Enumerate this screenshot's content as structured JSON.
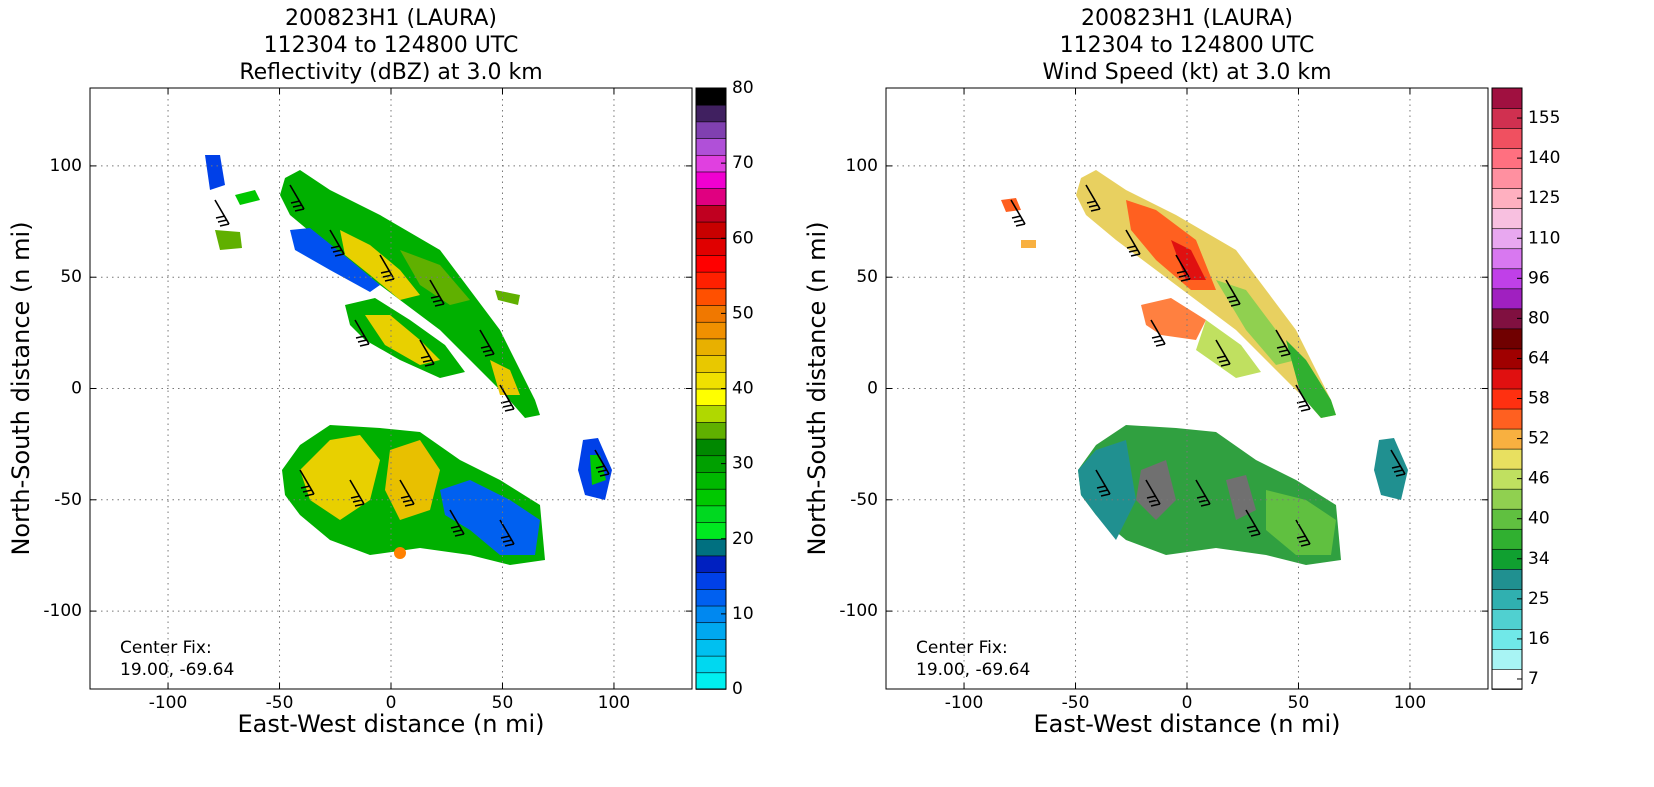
{
  "chart_data": [
    {
      "type": "heatmap",
      "title": [
        "200823H1 (LAURA)",
        "112304 to 124800 UTC",
        "Reflectivity (dBZ) at 3.0 km"
      ],
      "x_label": "East-West distance (n mi)",
      "y_label": "North-South distance (n mi)",
      "xlim": [
        -135,
        135
      ],
      "ylim": [
        -135,
        135
      ],
      "xticks": [
        -100,
        -50,
        0,
        50,
        100
      ],
      "yticks": [
        -100,
        -50,
        0,
        50,
        100
      ],
      "grid": true,
      "annotation": [
        "Center Fix:",
        "19.00, -69.64"
      ],
      "colorbar": {
        "scale": "linear",
        "lim": [
          0,
          80
        ],
        "ticks": [
          0,
          10,
          20,
          30,
          40,
          50,
          60,
          70,
          80
        ],
        "colors": [
          "#00f0f0",
          "#00d8f0",
          "#00c0f0",
          "#00a8f0",
          "#0088f0",
          "#0060f0",
          "#0040e8",
          "#0020c0",
          "#007080",
          "#00e820",
          "#00d820",
          "#00c800",
          "#00b800",
          "#00a000",
          "#008800",
          "#60b000",
          "#b0d800",
          "#ffff00",
          "#f0e000",
          "#e8c800",
          "#e8b000",
          "#f09000",
          "#f07800",
          "#ff5000",
          "#ff2000",
          "#ff0000",
          "#e00000",
          "#c80000",
          "#c00020",
          "#e00080",
          "#f000d0",
          "#e040e0",
          "#b050d8",
          "#8040b0",
          "#402060",
          "#000000"
        ]
      }
    },
    {
      "type": "heatmap",
      "title": [
        "200823H1 (LAURA)",
        "112304 to 124800 UTC",
        "Wind Speed (kt) at 3.0 km"
      ],
      "x_label": "East-West distance (n mi)",
      "y_label": "North-South distance (n mi)",
      "xlim": [
        -135,
        135
      ],
      "ylim": [
        -135,
        135
      ],
      "xticks": [
        -100,
        -50,
        0,
        50,
        100
      ],
      "yticks": [
        -100,
        -50,
        0,
        50,
        100
      ],
      "grid": true,
      "annotation": [
        "Center Fix:",
        "19.00, -69.64"
      ],
      "colorbar": {
        "scale": "index",
        "ticks": [
          7,
          16,
          25,
          34,
          40,
          46,
          52,
          58,
          64,
          80,
          96,
          110,
          125,
          140,
          155
        ],
        "colors": [
          "#ffffff",
          "#a8f4f4",
          "#70e8e8",
          "#50d0d0",
          "#30b0b0",
          "#209090",
          "#10a030",
          "#30b030",
          "#60c040",
          "#90d050",
          "#c0e060",
          "#e8e060",
          "#f8b040",
          "#ff6020",
          "#ff3010",
          "#e01010",
          "#a00000",
          "#700000",
          "#801040",
          "#a020c0",
          "#c040e8",
          "#d878f0",
          "#e8a8f0",
          "#f8c0e0",
          "#ffb0c0",
          "#ff90a0",
          "#ff7080",
          "#f05060",
          "#d03050",
          "#a01040"
        ]
      }
    }
  ]
}
